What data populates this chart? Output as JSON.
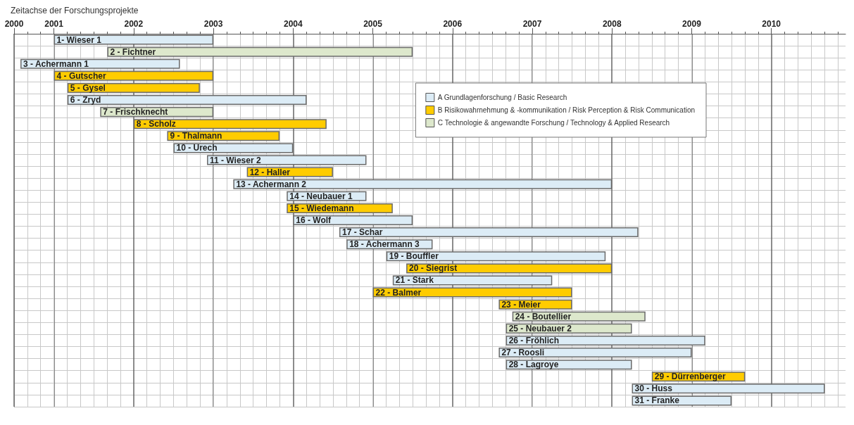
{
  "chart_data": {
    "type": "bar",
    "orientation": "horizontal",
    "title": "Zeitachse der Forschungsprojekte",
    "categories": [
      "1- Wieser 1",
      "2 - Fichtner",
      "3 - Achermann 1",
      "4 - Gutscher",
      "5 - Gysel",
      "6 - Zryd",
      "7 - Frischknecht",
      "8 - Scholz",
      "9 - Thalmann",
      "10 - Urech",
      "11 - Wieser 2",
      "12 - Haller",
      "13 - Achermann 2",
      "14 - Neubauer 1",
      "15 - Wiedemann",
      "16 - Wolf",
      "17 - Schar",
      "18 - Achermann 3",
      "19 - Bouffler",
      "20 - Siegrist",
      "21 - Stark",
      "22 - Balmer",
      "23 - Meier",
      "24 - Boutellier",
      "25 - Neubauer 2",
      "26 - Fröhlich",
      "27 - Roosli",
      "28 - Lagroye",
      "29 - Dürrenberger",
      "30 - Huss",
      "31 - Franke"
    ],
    "series": [
      {
        "name": "A Grundlagenforschung / Basic Research",
        "color": "#dcecf6",
        "base": [
          2001.0,
          null,
          2000.58,
          null,
          null,
          2001.17,
          null,
          null,
          null,
          2002.5,
          2002.92,
          null,
          2003.25,
          2003.92,
          null,
          2004.0,
          2004.58,
          2004.67,
          2005.17,
          null,
          2005.25,
          null,
          null,
          null,
          null,
          2006.67,
          2006.58,
          2006.67,
          null,
          2008.25,
          2008.25
        ],
        "values": [
          2.0,
          null,
          2.0,
          null,
          null,
          3.0,
          null,
          null,
          null,
          1.5,
          2.0,
          null,
          4.75,
          1.0,
          null,
          1.5,
          3.75,
          1.08,
          2.75,
          null,
          2.0,
          null,
          null,
          null,
          null,
          2.5,
          2.42,
          1.58,
          null,
          2.42,
          1.25
        ]
      },
      {
        "name": "B Risikowahrnehmung & -kommunikation / Risk Perception & Risk Communication",
        "color": "#ffcc00",
        "base": [
          null,
          null,
          null,
          2001.0,
          2001.17,
          null,
          null,
          2002.0,
          2002.42,
          null,
          null,
          2003.42,
          null,
          null,
          2003.92,
          null,
          null,
          null,
          null,
          2005.42,
          null,
          2005.0,
          2006.58,
          null,
          null,
          null,
          null,
          null,
          2008.5,
          null,
          null
        ],
        "values": [
          null,
          null,
          null,
          2.0,
          1.66,
          null,
          null,
          2.42,
          1.41,
          null,
          null,
          1.08,
          null,
          null,
          1.33,
          null,
          null,
          null,
          null,
          2.58,
          null,
          2.5,
          0.92,
          null,
          null,
          null,
          null,
          null,
          1.17,
          null,
          null
        ]
      },
      {
        "name": "C Technologie & angewandte Forschung / Technology & Applied Research",
        "color": "#dde8cc",
        "base": [
          null,
          2001.67,
          null,
          null,
          null,
          null,
          2001.58,
          null,
          null,
          null,
          null,
          null,
          null,
          null,
          null,
          null,
          null,
          null,
          null,
          null,
          null,
          null,
          null,
          2006.75,
          2006.67,
          null,
          null,
          null,
          null,
          null,
          null
        ],
        "values": [
          null,
          3.83,
          null,
          null,
          null,
          null,
          1.42,
          null,
          null,
          null,
          null,
          null,
          null,
          null,
          null,
          null,
          null,
          null,
          null,
          null,
          null,
          null,
          null,
          1.67,
          1.58,
          null,
          null,
          null,
          null,
          null,
          null
        ]
      }
    ],
    "xlim": [
      2000.5,
      2010.93
    ],
    "xticks": [
      {
        "value": 2000.5,
        "label": "2000"
      },
      2001,
      2002,
      2003,
      2004,
      2005,
      2006,
      2007,
      2008,
      2009,
      2010
    ],
    "grid": true,
    "legend": "top right"
  }
}
